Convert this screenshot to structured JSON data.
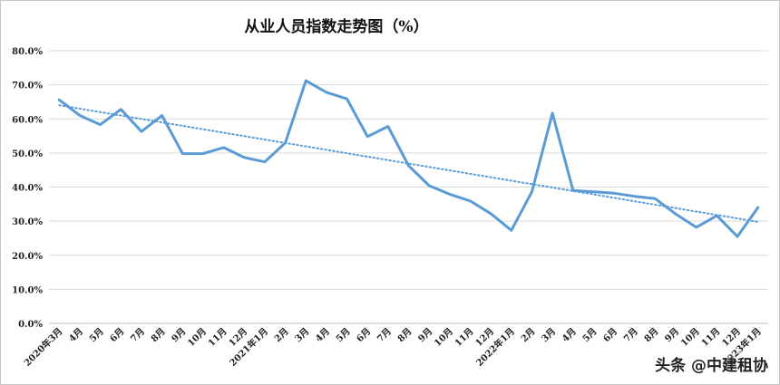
{
  "chart_data": {
    "type": "line",
    "title": "从业人员指数走势图（%）",
    "xlabel": "",
    "ylabel": "",
    "categories": [
      "2020年3月",
      "4月",
      "5月",
      "6月",
      "7月",
      "8月",
      "9月",
      "10月",
      "11月",
      "12月",
      "2021年1月",
      "2月",
      "3月",
      "4月",
      "5月",
      "6月",
      "7月",
      "8月",
      "9月",
      "10月",
      "11月",
      "12月",
      "2022年1月",
      "2月",
      "3月",
      "4月",
      "5月",
      "6月",
      "7月",
      "8月",
      "9月",
      "10月",
      "11月",
      "12月",
      "2023年1月"
    ],
    "series": [
      {
        "values": [
          65.6,
          61.0,
          58.3,
          62.8,
          56.3,
          61.0,
          49.8,
          49.8,
          51.6,
          48.7,
          47.4,
          53.0,
          71.2,
          67.8,
          65.9,
          54.8,
          57.8,
          46.3,
          40.4,
          37.9,
          35.9,
          32.2,
          27.3,
          38.6,
          61.7,
          39.0,
          38.6,
          38.2,
          37.3,
          36.6,
          32.1,
          28.2,
          31.6,
          25.5,
          34.0
        ],
        "color": "#5b9bd5"
      }
    ],
    "trendline": {
      "start": 64.0,
      "end": 29.8,
      "color": "#5b9bd5",
      "style": "dotted"
    },
    "y_ticks": [
      "0.0%",
      "10.0%",
      "20.0%",
      "30.0%",
      "40.0%",
      "50.0%",
      "60.0%",
      "70.0%",
      "80.0%"
    ],
    "ylim": [
      0,
      80
    ],
    "grid": true,
    "legend": "none"
  },
  "watermark": "头条 @中建租协"
}
